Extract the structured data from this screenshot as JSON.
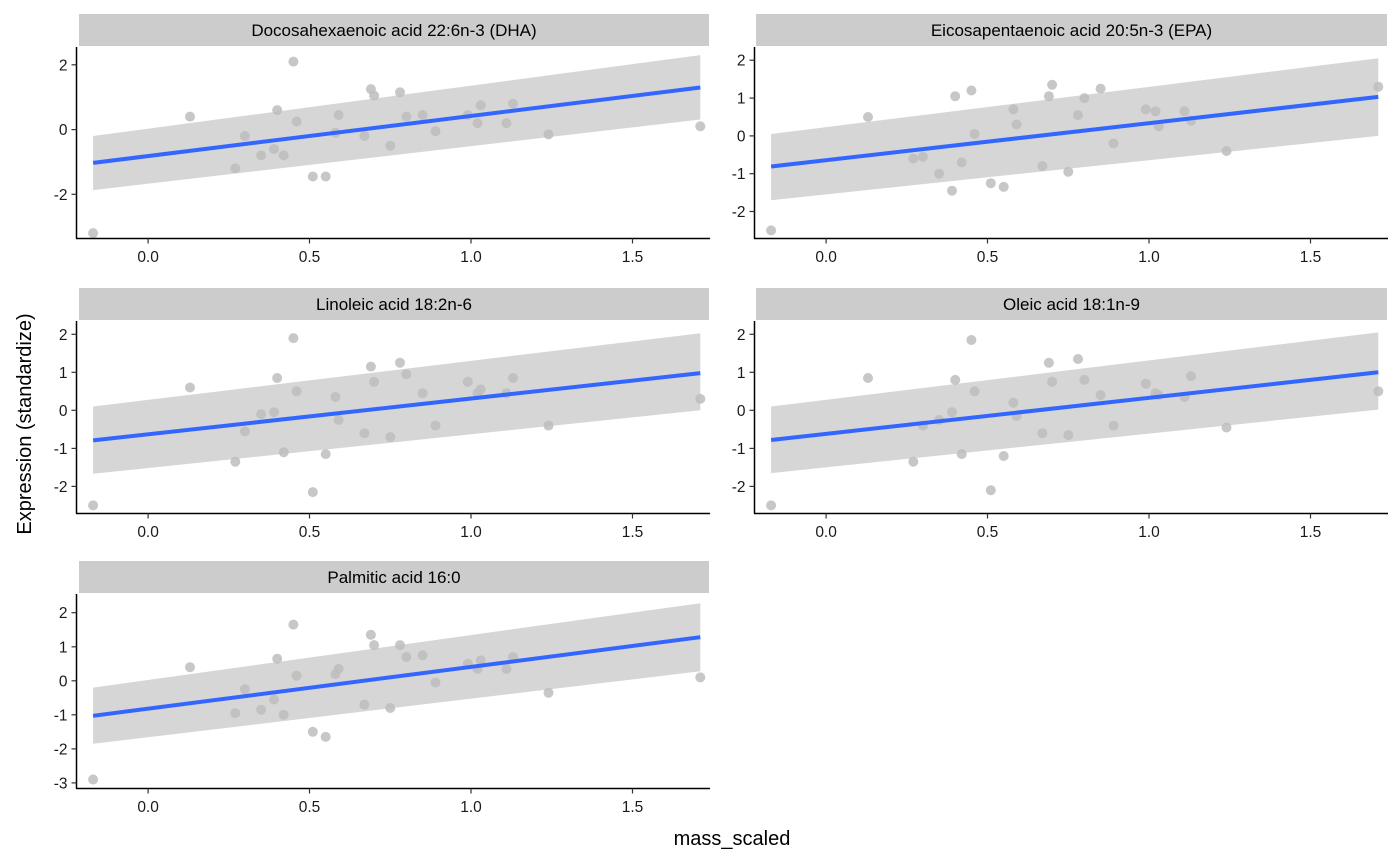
{
  "chart_data": {
    "type": "scatter",
    "layout": "facet_wrap",
    "xlabel": "mass_scaled",
    "ylabel": "Expression (standardize)",
    "colors": {
      "points": "#bdbdbd",
      "line": "#3366ff",
      "ribbon": "#d4d4d4",
      "strip": "#cccccc"
    },
    "grid": false,
    "x_ticks": [
      "0.0",
      "0.5",
      "1.0",
      "1.5"
    ],
    "x_tick_values": [
      0.0,
      0.5,
      1.0,
      1.5
    ],
    "xlim": [
      -0.22,
      1.74
    ],
    "x": [
      -0.17,
      0.13,
      0.27,
      0.3,
      0.35,
      0.39,
      0.4,
      0.42,
      0.45,
      0.46,
      0.51,
      0.55,
      0.58,
      0.59,
      0.67,
      0.69,
      0.7,
      0.75,
      0.78,
      0.8,
      0.85,
      0.89,
      0.99,
      1.02,
      1.03,
      1.11,
      1.13,
      1.24,
      1.71
    ],
    "facets": [
      {
        "title": "Docosahexaenoic acid 22:6n-3 (DHA)",
        "y_ticks": [
          "-2",
          "0",
          "2"
        ],
        "y_tick_values": [
          -2,
          0,
          2
        ],
        "ylim": [
          -3.35,
          2.55
        ],
        "y": [
          -3.2,
          0.4,
          -1.2,
          -0.2,
          -0.8,
          -0.6,
          0.6,
          -0.8,
          2.1,
          0.25,
          -1.45,
          -1.45,
          -0.1,
          0.45,
          -0.2,
          1.25,
          1.05,
          -0.5,
          1.15,
          0.4,
          0.45,
          -0.05,
          0.45,
          0.2,
          0.75,
          0.2,
          0.8,
          -0.15,
          0.1
        ],
        "fit": {
          "x": [
            -0.17,
            1.71
          ],
          "y": [
            -1.03,
            1.3
          ],
          "lower": [
            -1.87,
            0.31
          ],
          "upper": [
            -0.2,
            2.3
          ]
        }
      },
      {
        "title": "Eicosapentaenoic acid 20:5n-3 (EPA)",
        "y_ticks": [
          "-2",
          "-1",
          "0",
          "1",
          "2"
        ],
        "y_tick_values": [
          -2,
          -1,
          0,
          1,
          2
        ],
        "ylim": [
          -2.7,
          2.35
        ],
        "y": [
          -2.5,
          0.5,
          -0.6,
          -0.55,
          -1.0,
          -1.45,
          1.05,
          -0.7,
          1.2,
          0.05,
          -1.25,
          -1.35,
          0.7,
          0.3,
          -0.8,
          1.05,
          1.35,
          -0.95,
          0.55,
          1.0,
          1.25,
          -0.2,
          0.7,
          0.65,
          0.25,
          0.65,
          0.4,
          -0.4,
          1.3
        ],
        "fit": {
          "x": [
            -0.17,
            1.71
          ],
          "y": [
            -0.81,
            1.03
          ],
          "lower": [
            -1.7,
            0.0
          ],
          "upper": [
            0.05,
            2.05
          ]
        }
      },
      {
        "title": "Linoleic acid 18:2n-6",
        "y_ticks": [
          "-2",
          "-1",
          "0",
          "1",
          "2"
        ],
        "y_tick_values": [
          -2,
          -1,
          0,
          1,
          2
        ],
        "ylim": [
          -2.7,
          2.35
        ],
        "y": [
          -2.5,
          0.6,
          -1.35,
          -0.55,
          -0.1,
          -0.05,
          0.85,
          -1.1,
          1.9,
          0.5,
          -2.15,
          -1.15,
          0.35,
          -0.25,
          -0.6,
          1.15,
          0.75,
          -0.7,
          1.25,
          0.95,
          0.45,
          -0.4,
          0.75,
          0.45,
          0.55,
          0.45,
          0.85,
          -0.4,
          0.3
        ],
        "fit": {
          "x": [
            -0.17,
            1.71
          ],
          "y": [
            -0.79,
            0.98
          ],
          "lower": [
            -1.67,
            0.0
          ],
          "upper": [
            0.1,
            2.03
          ]
        }
      },
      {
        "title": "Oleic acid 18:1n-9",
        "y_ticks": [
          "-2",
          "-1",
          "0",
          "1",
          "2"
        ],
        "y_tick_values": [
          -2,
          -1,
          0,
          1,
          2
        ],
        "ylim": [
          -2.7,
          2.35
        ],
        "y": [
          -2.5,
          0.85,
          -1.35,
          -0.4,
          -0.25,
          -0.05,
          0.8,
          -1.15,
          1.85,
          0.5,
          -2.1,
          -1.2,
          0.2,
          -0.15,
          -0.6,
          1.25,
          0.75,
          -0.65,
          1.35,
          0.8,
          0.4,
          -0.4,
          0.7,
          0.45,
          0.4,
          0.35,
          0.9,
          -0.45,
          0.5
        ],
        "fit": {
          "x": [
            -0.17,
            1.71
          ],
          "y": [
            -0.78,
            1.0
          ],
          "lower": [
            -1.65,
            0.02
          ],
          "upper": [
            0.1,
            2.05
          ]
        }
      },
      {
        "title": "Palmitic acid 16:0",
        "y_ticks": [
          "-3",
          "-2",
          "-1",
          "0",
          "1",
          "2"
        ],
        "y_tick_values": [
          -3,
          -2,
          -1,
          0,
          1,
          2
        ],
        "ylim": [
          -3.15,
          2.55
        ],
        "y": [
          -2.9,
          0.4,
          -0.95,
          -0.25,
          -0.85,
          -0.55,
          0.65,
          -1.0,
          1.65,
          0.15,
          -1.5,
          -1.65,
          0.2,
          0.35,
          -0.7,
          1.35,
          1.05,
          -0.8,
          1.05,
          0.7,
          0.75,
          -0.05,
          0.5,
          0.35,
          0.6,
          0.35,
          0.7,
          -0.35,
          0.1
        ],
        "fit": {
          "x": [
            -0.17,
            1.71
          ],
          "y": [
            -1.03,
            1.28
          ],
          "lower": [
            -1.85,
            0.28
          ],
          "upper": [
            -0.2,
            2.28
          ]
        }
      }
    ]
  }
}
